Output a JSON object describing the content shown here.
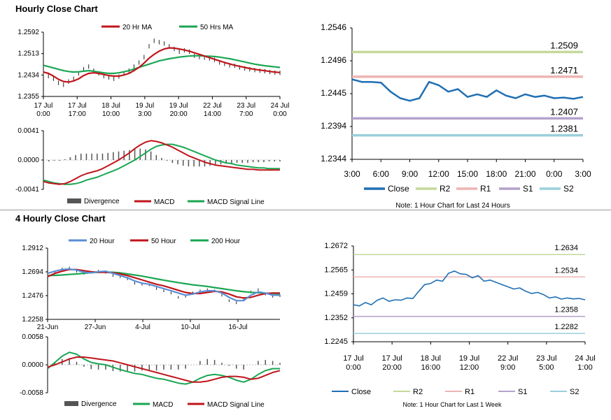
{
  "sections": [
    {
      "title": "Hourly Close Chart"
    },
    {
      "title": "4 Hourly Close Chart"
    }
  ],
  "colors": {
    "ma_short": "#c0151b",
    "ma_long": "#1aa653",
    "macd": "#c0151b",
    "signal": "#1aa653",
    "divergence": "#555555",
    "close": "#1f6fb4",
    "r2": "#c5d99b",
    "r1": "#eeb4b4",
    "s1": "#b4a2cc",
    "s2": "#9bcfdc",
    "price_bars": "#222222",
    "ma20_4h": "#5b8ed6",
    "ma50_4h": "#c0151b",
    "ma200_4h": "#1aa653"
  },
  "chart_data": [
    {
      "id": "hourly_price",
      "type": "line",
      "legend": [
        "20 Hr MA",
        "50 Hrs MA"
      ],
      "legend_position": "top",
      "yticks": [
        "1.2592",
        "1.2513",
        "1.2434",
        "1.2355"
      ],
      "ylim": [
        1.2355,
        1.2592
      ],
      "xticks": [
        "17 Jul\n0:00",
        "17 Jul\n17:00",
        "18 Jul\n10:00",
        "19 Jul\n3:00",
        "19 Jul\n20:00",
        "22 Jul\n14:00",
        "23 Jul\n7:00",
        "24 Jul\n0:00"
      ],
      "close": [
        1.244,
        1.243,
        1.242,
        1.2405,
        1.2398,
        1.241,
        1.242,
        1.244,
        1.2455,
        1.2465,
        1.245,
        1.244,
        1.243,
        1.2425,
        1.242,
        1.2428,
        1.244,
        1.245,
        1.2465,
        1.248,
        1.25,
        1.254,
        1.256,
        1.2555,
        1.255,
        1.254,
        1.253,
        1.252,
        1.2525,
        1.252,
        1.2505,
        1.25,
        1.2498,
        1.2495,
        1.249,
        1.248,
        1.2475,
        1.247,
        1.2468,
        1.2462,
        1.2458,
        1.2455,
        1.2452,
        1.245,
        1.2448,
        1.2445,
        1.2443,
        1.2442
      ],
      "ma20": [
        1.2445,
        1.244,
        1.243,
        1.2418,
        1.241,
        1.2408,
        1.2412,
        1.242,
        1.2432,
        1.244,
        1.2442,
        1.244,
        1.2436,
        1.2432,
        1.243,
        1.243,
        1.2434,
        1.244,
        1.245,
        1.2462,
        1.2478,
        1.2496,
        1.251,
        1.2522,
        1.253,
        1.2534,
        1.2533,
        1.253,
        1.2526,
        1.2522,
        1.2516,
        1.251,
        1.2504,
        1.2498,
        1.2492,
        1.2486,
        1.248,
        1.2475,
        1.247,
        1.2466,
        1.2462,
        1.2458,
        1.2455,
        1.2452,
        1.245,
        1.2447,
        1.2445,
        1.2443
      ],
      "ma50": [
        1.247,
        1.2465,
        1.246,
        1.2455,
        1.245,
        1.2447,
        1.2445,
        1.2446,
        1.2448,
        1.245,
        1.2448,
        1.2445,
        1.2442,
        1.244,
        1.244,
        1.2442,
        1.2446,
        1.245,
        1.2456,
        1.2462,
        1.2468,
        1.2474,
        1.248,
        1.2486,
        1.249,
        1.2494,
        1.2497,
        1.25,
        1.2502,
        1.2504,
        1.2505,
        1.2505,
        1.2504,
        1.2503,
        1.2502,
        1.25,
        1.2497,
        1.2494,
        1.249,
        1.2486,
        1.2482,
        1.2478,
        1.2474,
        1.2471,
        1.2468,
        1.2466,
        1.2464,
        1.2462
      ]
    },
    {
      "id": "hourly_macd",
      "type": "line",
      "legend": [
        "Divergence",
        "MACD",
        "MACD Signal Line"
      ],
      "legend_position": "bottom",
      "yticks": [
        "0.0041",
        "0.0000",
        "-0.0041"
      ],
      "ylim": [
        -0.0041,
        0.0041
      ],
      "macd": [
        -0.003,
        -0.0032,
        -0.0033,
        -0.0034,
        -0.0033,
        -0.003,
        -0.0026,
        -0.0022,
        -0.0019,
        -0.0017,
        -0.0015,
        -0.0012,
        -0.0008,
        -0.0004,
        0.0,
        0.0005,
        0.001,
        0.0016,
        0.0021,
        0.0025,
        0.0027,
        0.0026,
        0.0024,
        0.0021,
        0.0018,
        0.0014,
        0.001,
        0.0006,
        0.0003,
        0.0,
        -0.0003,
        -0.0005,
        -0.0007,
        -0.0008,
        -0.0009,
        -0.001,
        -0.0011,
        -0.0012,
        -0.0013,
        -0.0013,
        -0.0014,
        -0.0014,
        -0.0014,
        -0.0014,
        -0.0014
      ],
      "signal": [
        -0.0028,
        -0.003,
        -0.0032,
        -0.0033,
        -0.0034,
        -0.0034,
        -0.0033,
        -0.0031,
        -0.0028,
        -0.0026,
        -0.0024,
        -0.0021,
        -0.0018,
        -0.0015,
        -0.0012,
        -0.0008,
        -0.0004,
        0.0,
        0.0005,
        0.001,
        0.0015,
        0.0019,
        0.0021,
        0.0022,
        0.0022,
        0.002,
        0.0018,
        0.0015,
        0.0012,
        0.0009,
        0.0006,
        0.0003,
        0.0,
        -0.0002,
        -0.0004,
        -0.0005,
        -0.0007,
        -0.0008,
        -0.0009,
        -0.001,
        -0.0011,
        -0.0011,
        -0.0012,
        -0.0012,
        -0.0012
      ]
    },
    {
      "id": "hourly_close_24h",
      "type": "line",
      "yticks": [
        "1.2546",
        "1.2496",
        "1.2445",
        "1.2394",
        "1.2344"
      ],
      "ylim": [
        1.2344,
        1.2546
      ],
      "xticks": [
        "3:00",
        "6:00",
        "9:00",
        "12:00",
        "15:00",
        "18:00",
        "21:00",
        "0:00",
        "3:00"
      ],
      "x": [
        "3:00",
        "4:00",
        "5:00",
        "6:00",
        "7:00",
        "8:00",
        "9:00",
        "10:00",
        "11:00",
        "12:00",
        "13:00",
        "14:00",
        "15:00",
        "16:00",
        "17:00",
        "18:00",
        "19:00",
        "20:00",
        "21:00",
        "22:00",
        "23:00",
        "0:00",
        "1:00",
        "2:00",
        "3:00"
      ],
      "close": [
        1.2467,
        1.2463,
        1.2463,
        1.2462,
        1.2448,
        1.2438,
        1.2434,
        1.2438,
        1.2463,
        1.2458,
        1.2448,
        1.2452,
        1.244,
        1.2444,
        1.244,
        1.245,
        1.2442,
        1.2438,
        1.2444,
        1.244,
        1.2442,
        1.2438,
        1.2439,
        1.2437,
        1.244
      ],
      "levels": [
        {
          "name": "R2",
          "value": 1.2509,
          "label": "1.2509"
        },
        {
          "name": "R1",
          "value": 1.2471,
          "label": "1.2471"
        },
        {
          "name": "S1",
          "value": 1.2407,
          "label": "1.2407"
        },
        {
          "name": "S2",
          "value": 1.2381,
          "label": "1.2381"
        }
      ],
      "legend": [
        "Close",
        "R2",
        "R1",
        "S1",
        "S2"
      ],
      "note": "Note: 1 Hour Chart for Last 24 Hours"
    },
    {
      "id": "fourhour_price",
      "type": "line",
      "legend": [
        "20 Hour",
        "50 Hour",
        "200 Hour"
      ],
      "legend_position": "top",
      "yticks": [
        "1.2912",
        "1.2694",
        "1.2476",
        "1.2258"
      ],
      "ylim": [
        1.2258,
        1.2912
      ],
      "xticks": [
        "21-Jun",
        "27-Jun",
        "4-Jul",
        "10-Jul",
        "16-Jul"
      ],
      "ma20": [
        1.268,
        1.27,
        1.2715,
        1.272,
        1.271,
        1.269,
        1.2685,
        1.2695,
        1.27,
        1.268,
        1.266,
        1.264,
        1.261,
        1.259,
        1.258,
        1.256,
        1.254,
        1.252,
        1.25,
        1.248,
        1.249,
        1.251,
        1.252,
        1.252,
        1.25,
        1.246,
        1.243,
        1.243,
        1.248,
        1.251,
        1.25,
        1.248,
        1.248
      ],
      "ma50": [
        1.265,
        1.268,
        1.27,
        1.2715,
        1.2715,
        1.2705,
        1.2695,
        1.269,
        1.269,
        1.2685,
        1.2675,
        1.266,
        1.264,
        1.262,
        1.26,
        1.258,
        1.2565,
        1.2545,
        1.2525,
        1.2505,
        1.2495,
        1.2495,
        1.2505,
        1.2515,
        1.251,
        1.249,
        1.2465,
        1.2455,
        1.246,
        1.248,
        1.2495,
        1.25,
        1.25
      ],
      "ma200": [
        1.266,
        1.2662,
        1.2665,
        1.267,
        1.2675,
        1.268,
        1.2686,
        1.269,
        1.2692,
        1.269,
        1.2685,
        1.2675,
        1.2665,
        1.2655,
        1.2642,
        1.263,
        1.2618,
        1.2606,
        1.2595,
        1.2585,
        1.2575,
        1.2568,
        1.256,
        1.255,
        1.254,
        1.253,
        1.252,
        1.2512,
        1.2506,
        1.2502,
        1.2498,
        1.2495,
        1.2492
      ],
      "close": [
        1.266,
        1.269,
        1.272,
        1.273,
        1.27,
        1.268,
        1.269,
        1.27,
        1.269,
        1.266,
        1.265,
        1.263,
        1.259,
        1.258,
        1.2575,
        1.254,
        1.252,
        1.25,
        1.246,
        1.247,
        1.25,
        1.252,
        1.253,
        1.252,
        1.248,
        1.243,
        1.241,
        1.244,
        1.251,
        1.253,
        1.249,
        1.247,
        1.2475
      ]
    },
    {
      "id": "fourhour_macd",
      "type": "line",
      "legend": [
        "Divergence",
        "MACD",
        "MACD Signal Line"
      ],
      "legend_position": "bottom",
      "yticks": [
        "0.0058",
        "0.0000",
        "-0.0058"
      ],
      "ylim": [
        -0.0058,
        0.0058
      ],
      "macd": [
        -0.0008,
        0.0005,
        0.0018,
        0.0026,
        0.0022,
        0.0012,
        0.0005,
        0.0002,
        0.0,
        -0.0005,
        -0.001,
        -0.0014,
        -0.0018,
        -0.002,
        -0.0024,
        -0.0028,
        -0.003,
        -0.0034,
        -0.0038,
        -0.004,
        -0.0036,
        -0.0028,
        -0.0022,
        -0.002,
        -0.0022,
        -0.0026,
        -0.0032,
        -0.0036,
        -0.003,
        -0.002,
        -0.0012,
        -0.0008,
        -0.0008
      ],
      "signal": [
        -0.0005,
        0.0,
        0.0006,
        0.0012,
        0.0016,
        0.0016,
        0.0014,
        0.0012,
        0.001,
        0.0008,
        0.0004,
        0.0,
        -0.0004,
        -0.0008,
        -0.0012,
        -0.0016,
        -0.002,
        -0.0024,
        -0.0028,
        -0.0032,
        -0.0036,
        -0.0036,
        -0.0034,
        -0.003,
        -0.0026,
        -0.0024,
        -0.0024,
        -0.0026,
        -0.003,
        -0.0028,
        -0.0022,
        -0.0016,
        -0.0012
      ]
    },
    {
      "id": "weekly_close",
      "type": "line",
      "yticks": [
        "1.2672",
        "1.2565",
        "1.2459",
        "1.2352",
        "1.2245"
      ],
      "ylim": [
        1.2245,
        1.2672
      ],
      "xticks": [
        "17 Jul\n0:00",
        "17 Jul\n20:00",
        "18 Jul\n16:00",
        "19 Jul\n12:00",
        "22 Jul\n9:00",
        "23 Jul\n5:00",
        "24 Jul\n1:00"
      ],
      "close": [
        1.241,
        1.2405,
        1.242,
        1.241,
        1.243,
        1.244,
        1.2425,
        1.2432,
        1.243,
        1.244,
        1.2438,
        1.247,
        1.25,
        1.2505,
        1.252,
        1.2515,
        1.255,
        1.256,
        1.2548,
        1.2545,
        1.253,
        1.254,
        1.2515,
        1.252,
        1.251,
        1.25,
        1.249,
        1.248,
        1.2485,
        1.247,
        1.246,
        1.2465,
        1.2455,
        1.244,
        1.2445,
        1.2435,
        1.244,
        1.2436,
        1.2438,
        1.2432
      ],
      "levels": [
        {
          "name": "R2",
          "value": 1.2634,
          "label": "1.2634"
        },
        {
          "name": "R1",
          "value": 1.2534,
          "label": "1.2534"
        },
        {
          "name": "S1",
          "value": 1.2358,
          "label": "1.2358"
        },
        {
          "name": "S2",
          "value": 1.2282,
          "label": "1.2282"
        }
      ],
      "legend": [
        "Close",
        "R2",
        "R1",
        "S1",
        "S2"
      ],
      "note": "Note: 1 Hour Chart for Last 1 Week"
    }
  ]
}
